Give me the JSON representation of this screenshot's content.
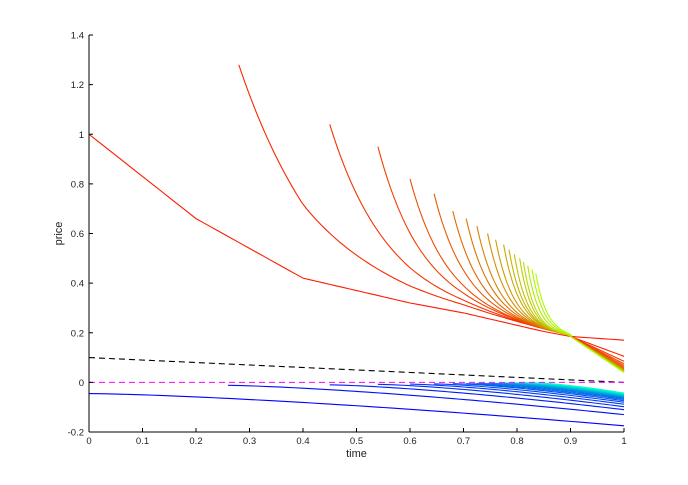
{
  "chart_data": {
    "type": "line",
    "title": "",
    "xlabel": "time",
    "ylabel": "price",
    "xlim": [
      0,
      1
    ],
    "ylim": [
      -0.2,
      1.4
    ],
    "xticks": [
      "0",
      "0.1",
      "0.2",
      "0.3",
      "0.4",
      "0.5",
      "0.6",
      "0.7",
      "0.8",
      "0.9",
      "1"
    ],
    "yticks": [
      "-0.2",
      "0",
      "0.2",
      "0.4",
      "0.6",
      "0.8",
      "1",
      "1.2",
      "1.4"
    ],
    "grid": false,
    "upper_family": {
      "color_start": "#ff1a00",
      "color_end": "#aaff00",
      "start_points": [
        {
          "x": 0.0,
          "y": 1.0
        },
        {
          "x": 0.28,
          "y": 1.28
        },
        {
          "x": 0.45,
          "y": 1.04
        },
        {
          "x": 0.54,
          "y": 0.95
        },
        {
          "x": 0.6,
          "y": 0.82
        },
        {
          "x": 0.645,
          "y": 0.76
        },
        {
          "x": 0.68,
          "y": 0.69
        },
        {
          "x": 0.705,
          "y": 0.66
        },
        {
          "x": 0.725,
          "y": 0.63
        },
        {
          "x": 0.745,
          "y": 0.6
        },
        {
          "x": 0.76,
          "y": 0.575
        },
        {
          "x": 0.775,
          "y": 0.555
        },
        {
          "x": 0.785,
          "y": 0.535
        },
        {
          "x": 0.795,
          "y": 0.515
        },
        {
          "x": 0.805,
          "y": 0.5
        },
        {
          "x": 0.812,
          "y": 0.485
        },
        {
          "x": 0.82,
          "y": 0.47
        },
        {
          "x": 0.828,
          "y": 0.455
        },
        {
          "x": 0.835,
          "y": 0.44
        }
      ],
      "end_values": [
        0.17,
        0.105,
        0.085,
        0.075,
        0.068,
        0.062,
        0.058,
        0.055,
        0.052,
        0.05,
        0.048,
        0.046,
        0.045,
        0.044,
        0.043,
        0.042,
        0.041,
        0.04,
        0.04
      ],
      "envelope": [
        {
          "x": 0.0,
          "y": 1.0
        },
        {
          "x": 0.2,
          "y": 0.66
        },
        {
          "x": 0.4,
          "y": 0.42
        },
        {
          "x": 0.6,
          "y": 0.32
        },
        {
          "x": 0.7,
          "y": 0.28
        },
        {
          "x": 0.8,
          "y": 0.23
        },
        {
          "x": 0.85,
          "y": 0.205
        },
        {
          "x": 0.9,
          "y": 0.185
        }
      ]
    },
    "lower_family": {
      "color_start": "#0000ff",
      "color_end": "#00ffcc",
      "curves": [
        {
          "x_start": 0.0,
          "y_start": -0.045,
          "y_end": -0.175
        },
        {
          "x_start": 0.26,
          "y_start": -0.012,
          "y_end": -0.13
        },
        {
          "x_start": 0.45,
          "y_start": -0.01,
          "y_end": -0.11
        },
        {
          "x_start": 0.54,
          "y_start": -0.008,
          "y_end": -0.098
        },
        {
          "x_start": 0.6,
          "y_start": -0.007,
          "y_end": -0.088
        },
        {
          "x_start": 0.645,
          "y_start": -0.006,
          "y_end": -0.08
        },
        {
          "x_start": 0.68,
          "y_start": -0.005,
          "y_end": -0.074
        },
        {
          "x_start": 0.705,
          "y_start": -0.005,
          "y_end": -0.069
        },
        {
          "x_start": 0.725,
          "y_start": -0.004,
          "y_end": -0.065
        },
        {
          "x_start": 0.745,
          "y_start": -0.004,
          "y_end": -0.062
        },
        {
          "x_start": 0.76,
          "y_start": -0.004,
          "y_end": -0.059
        },
        {
          "x_start": 0.775,
          "y_start": -0.003,
          "y_end": -0.057
        },
        {
          "x_start": 0.785,
          "y_start": -0.003,
          "y_end": -0.055
        },
        {
          "x_start": 0.795,
          "y_start": -0.003,
          "y_end": -0.053
        },
        {
          "x_start": 0.805,
          "y_start": -0.003,
          "y_end": -0.051
        },
        {
          "x_start": 0.812,
          "y_start": -0.002,
          "y_end": -0.049
        },
        {
          "x_start": 0.82,
          "y_start": -0.002,
          "y_end": -0.047
        },
        {
          "x_start": 0.828,
          "y_start": -0.002,
          "y_end": -0.045
        },
        {
          "x_start": 0.835,
          "y_start": -0.002,
          "y_end": -0.043
        }
      ]
    },
    "reference_lines": [
      {
        "style": "dashed",
        "color": "#000000",
        "x": [
          0,
          1
        ],
        "y": [
          0.1,
          0.0
        ]
      },
      {
        "style": "dashed",
        "color": "#ff00ff",
        "x": [
          0,
          1
        ],
        "y": [
          0.0,
          0.0
        ]
      }
    ]
  }
}
